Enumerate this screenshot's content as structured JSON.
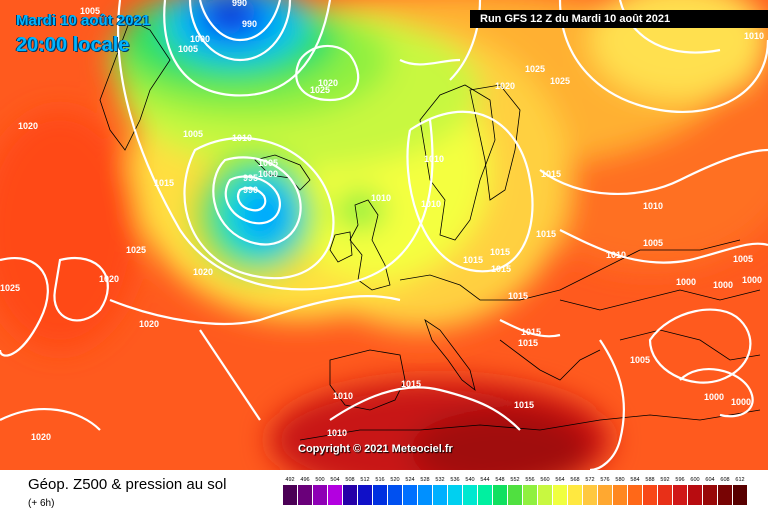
{
  "header": {
    "date_title": "Mardi 10 août 2021",
    "local_time": "20:00 locale",
    "run_info": "Run GFS 12 Z du Mardi 10 août 2021"
  },
  "copyright": "Copyright © 2021 Meteociel.fr",
  "footer": {
    "title": "Géop. Z500 & pression au sol",
    "subtitle": "(+ 6h)"
  },
  "legend": {
    "values": [
      "492",
      "496",
      "500",
      "504",
      "508",
      "512",
      "516",
      "520",
      "524",
      "528",
      "532",
      "536",
      "540",
      "544",
      "548",
      "552",
      "556",
      "560",
      "564",
      "568",
      "572",
      "576",
      "580",
      "584",
      "588",
      "592",
      "596",
      "600",
      "604",
      "608",
      "612"
    ],
    "colors": [
      "#4b0055",
      "#6a007a",
      "#8e00b5",
      "#b300e0",
      "#2600a8",
      "#1010c8",
      "#0030e0",
      "#0050f0",
      "#0070ff",
      "#0090ff",
      "#00b0ff",
      "#00d0f0",
      "#00e8d0",
      "#00f0a0",
      "#10e060",
      "#50e040",
      "#90f040",
      "#c8f840",
      "#f0ff40",
      "#ffe840",
      "#ffc840",
      "#ffa830",
      "#ff8820",
      "#ff6818",
      "#f84818",
      "#e83018",
      "#d01818",
      "#b80c10",
      "#980808",
      "#780404",
      "#580000"
    ]
  },
  "map": {
    "isobar_labels": [
      {
        "text": "990"
      },
      {
        "text": "990"
      },
      {
        "text": "1005"
      },
      {
        "text": "1000"
      },
      {
        "text": "1005"
      },
      {
        "text": "1020"
      },
      {
        "text": "1025"
      },
      {
        "text": "1025"
      },
      {
        "text": "1025"
      },
      {
        "text": "1020"
      },
      {
        "text": "1020"
      },
      {
        "text": "1005"
      },
      {
        "text": "1010"
      },
      {
        "text": "1015"
      },
      {
        "text": "1005"
      },
      {
        "text": "995"
      },
      {
        "text": "1000"
      },
      {
        "text": "990"
      },
      {
        "text": "1010"
      },
      {
        "text": "1010"
      },
      {
        "text": "1010"
      },
      {
        "text": "1015"
      },
      {
        "text": "1010"
      },
      {
        "text": "1025"
      },
      {
        "text": "1020"
      },
      {
        "text": "1020"
      },
      {
        "text": "1015"
      },
      {
        "text": "1015"
      },
      {
        "text": "1015"
      },
      {
        "text": "1015"
      },
      {
        "text": "1010"
      },
      {
        "text": "1005"
      },
      {
        "text": "1000"
      },
      {
        "text": "1000"
      },
      {
        "text": "1005"
      },
      {
        "text": "1000"
      },
      {
        "text": "1020"
      },
      {
        "text": "1025"
      },
      {
        "text": "1015"
      },
      {
        "text": "1015"
      },
      {
        "text": "1015"
      },
      {
        "text": "1010"
      },
      {
        "text": "1015"
      },
      {
        "text": "1010"
      },
      {
        "text": "1005"
      },
      {
        "text": "1000"
      },
      {
        "text": "1000"
      },
      {
        "text": "1020"
      },
      {
        "text": "1010"
      },
      {
        "text": "1015"
      }
    ]
  }
}
